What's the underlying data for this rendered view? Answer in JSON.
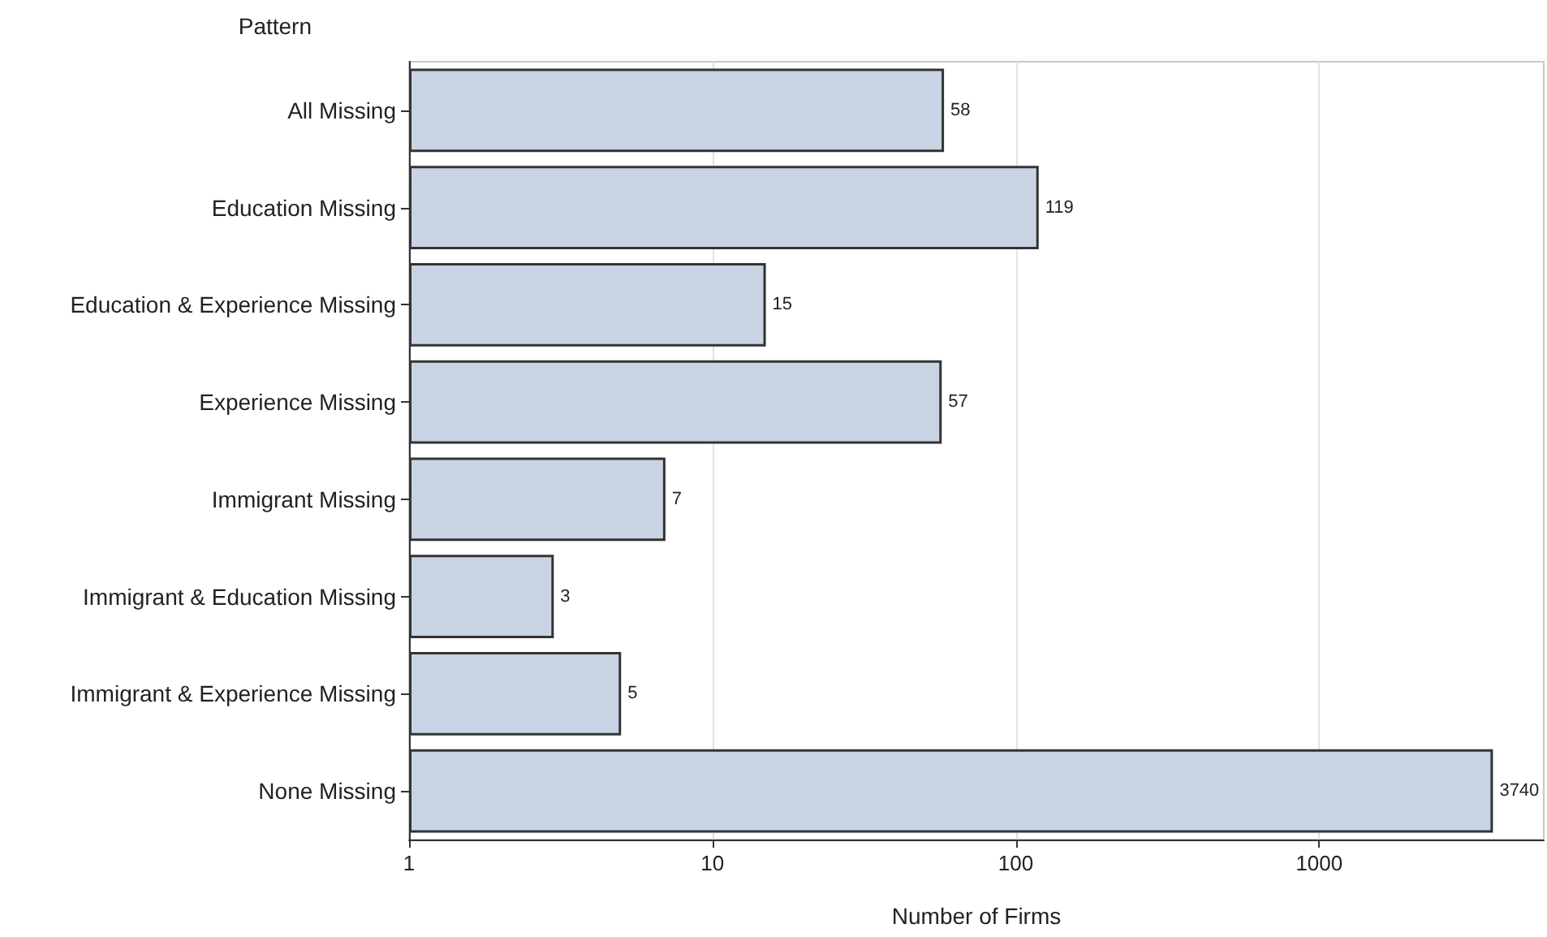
{
  "chart_data": {
    "type": "bar",
    "orientation": "horizontal",
    "log": "x",
    "ylabel": "Pattern",
    "xlabel": "Number of Firms",
    "categories": [
      "All Missing",
      "Education Missing",
      "Education & Experience Missing",
      "Experience Missing",
      "Immigrant Missing",
      "Immigrant & Education Missing",
      "Immigrant & Experience Missing",
      "None Missing"
    ],
    "values": [
      58,
      119,
      15,
      57,
      7,
      3,
      5,
      3740
    ],
    "color": "#c8d4e4",
    "xlim": [
      1,
      5500
    ],
    "xticks": [
      1,
      10,
      100,
      1000
    ],
    "grid": "x",
    "data_labels": true
  }
}
